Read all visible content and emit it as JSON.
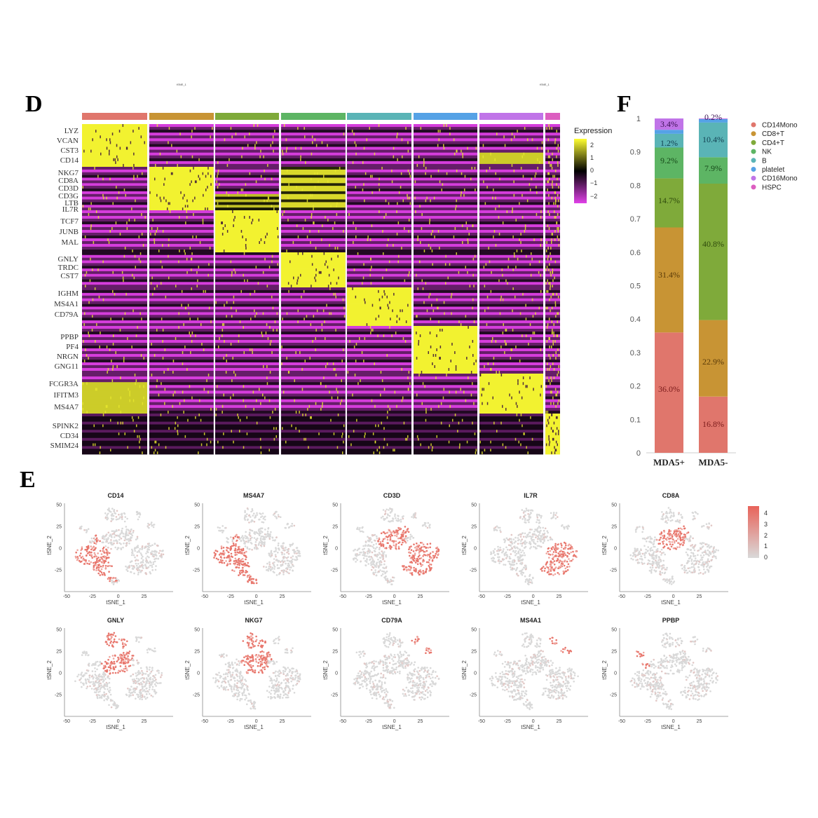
{
  "panels": {
    "D": {
      "letter": "D"
    },
    "E": {
      "letter": "E"
    },
    "F": {
      "letter": "F"
    }
  },
  "faint_marks": [
    "tSNE_1",
    "tSNE_1"
  ],
  "heatmap": {
    "clusters": [
      {
        "name": "CD14Mono",
        "color": "#E0766C"
      },
      {
        "name": "CD8+T",
        "color": "#C89434"
      },
      {
        "name": "CD4+T",
        "color": "#7FAA3A"
      },
      {
        "name": "NK",
        "color": "#5DB564"
      },
      {
        "name": "B",
        "color": "#5AB4B6"
      },
      {
        "name": "platelet",
        "color": "#55A2E6"
      },
      {
        "name": "CD16Mono",
        "color": "#C074E8"
      },
      {
        "name": "HSPC",
        "color": "#DC5EC0"
      }
    ],
    "gene_blocks": [
      {
        "cluster": "CD14Mono",
        "genes": [
          "LYZ",
          "VCAN",
          "CST3",
          "CD14"
        ]
      },
      {
        "cluster": "CD8+T",
        "genes": [
          "NKG7",
          "CD8A",
          "CD3D",
          "CD3G",
          "LTB",
          "IL7R"
        ]
      },
      {
        "cluster": "CD4+T",
        "genes": [
          "TCF7",
          "JUNB",
          "MAL"
        ]
      },
      {
        "cluster": "NK",
        "genes": [
          "GNLY",
          "TRDC",
          "CST7"
        ]
      },
      {
        "cluster": "B",
        "genes": [
          "IGHM",
          "MS4A1",
          "CD79A"
        ]
      },
      {
        "cluster": "platelet",
        "genes": [
          "PPBP",
          "PF4",
          "NRGN",
          "GNG11"
        ]
      },
      {
        "cluster": "CD16Mono",
        "genes": [
          "FCGR3A",
          "IFITM3",
          "MS4A7"
        ]
      },
      {
        "cluster": "HSPC",
        "genes": [
          "SPINK2",
          "CD34",
          "SMIM24"
        ]
      }
    ],
    "color_scale": {
      "title": "Expression",
      "ticks": [
        "2",
        "1",
        "0",
        "−1",
        "−2"
      ],
      "low": "#E040E8",
      "mid": "#000000",
      "high": "#FFFF33"
    }
  },
  "chart_data": [
    {
      "type": "bar",
      "stacked": true,
      "panel": "F",
      "title": "",
      "xlabel": "",
      "ylabel": "",
      "categories": [
        "MDA5+",
        "MDA5-"
      ],
      "ylim": [
        0,
        1
      ],
      "yticks": [
        "0",
        "0.1",
        "0.2",
        "0.3",
        "0.4",
        "0.5",
        "0.6",
        "0.7",
        "0.8",
        "0.9",
        "1"
      ],
      "series": [
        {
          "name": "CD14Mono",
          "color": "#E0766C",
          "values": [
            0.36,
            0.168
          ],
          "labels": [
            "36.0%",
            "16.8%"
          ],
          "label_color": "#7a1a1a"
        },
        {
          "name": "CD8+T",
          "color": "#C89434",
          "values": [
            0.314,
            0.229
          ],
          "labels": [
            "31.4%",
            "22.9%"
          ],
          "label_color": "#5a3a08"
        },
        {
          "name": "CD4+T",
          "color": "#7FAA3A",
          "values": [
            0.147,
            0.408
          ],
          "labels": [
            "14.7%",
            "40.8%"
          ],
          "label_color": "#2f4a0c"
        },
        {
          "name": "NK",
          "color": "#5DB564",
          "values": [
            0.092,
            0.079
          ],
          "labels": [
            "9.2%",
            "7.9%"
          ],
          "label_color": "#174a1a"
        },
        {
          "name": "B",
          "color": "#5AB4B6",
          "values": [
            0.041,
            0.104
          ],
          "labels": [
            "",
            "10.4%"
          ],
          "label_color": "#123f50"
        },
        {
          "name": "platelet",
          "color": "#55A2E6",
          "values": [
            0.012,
            0.01
          ],
          "labels": [
            "1.2%",
            ""
          ],
          "label_color": "#123f50"
        },
        {
          "name": "CD16Mono",
          "color": "#C074E8",
          "values": [
            0.034,
            0.002
          ],
          "labels": [
            "3.4%",
            "0.2%"
          ],
          "label_color": "#3b1055"
        },
        {
          "name": "HSPC",
          "color": "#DC5EC0",
          "values": [
            0.0,
            0.0
          ],
          "labels": [
            "",
            ""
          ],
          "label_color": "#3b1055"
        }
      ],
      "legend": {
        "position": "right",
        "entries": [
          "CD14Mono",
          "CD8+T",
          "CD4+T",
          "NK",
          "B",
          "platelet",
          "CD16Mono",
          "HSPC"
        ]
      }
    },
    {
      "type": "scatter",
      "panel": "E",
      "xlabel": "tSNE_1",
      "ylabel": "tSNE_2",
      "xticks": [
        "-50",
        "-25",
        "0",
        "25"
      ],
      "yticks": [
        "50",
        "25",
        "0",
        "-25"
      ],
      "xlim": [
        -50,
        45
      ],
      "ylim": [
        -45,
        52
      ],
      "color_scale": {
        "ticks": [
          "4",
          "3",
          "2",
          "1",
          "0"
        ],
        "low": "#D9D9D9",
        "high": "#E8635A",
        "range": [
          0,
          4
        ]
      },
      "plots": [
        {
          "gene": "CD14",
          "high_clusters": [
            "CD14Mono"
          ]
        },
        {
          "gene": "MS4A7",
          "high_clusters": [
            "CD14Mono",
            "CD16Mono"
          ]
        },
        {
          "gene": "CD3D",
          "high_clusters": [
            "CD8+T",
            "CD4+T"
          ]
        },
        {
          "gene": "IL7R",
          "high_clusters": [
            "CD4+T"
          ]
        },
        {
          "gene": "CD8A",
          "high_clusters": [
            "CD8+T"
          ]
        },
        {
          "gene": "GNLY",
          "high_clusters": [
            "NK",
            "CD8+T"
          ]
        },
        {
          "gene": "NKG7",
          "high_clusters": [
            "NK",
            "CD8+T"
          ]
        },
        {
          "gene": "CD79A",
          "high_clusters": [
            "B"
          ]
        },
        {
          "gene": "MS4A1",
          "high_clusters": [
            "B"
          ]
        },
        {
          "gene": "PPBP",
          "high_clusters": [
            "platelet"
          ]
        }
      ]
    }
  ]
}
